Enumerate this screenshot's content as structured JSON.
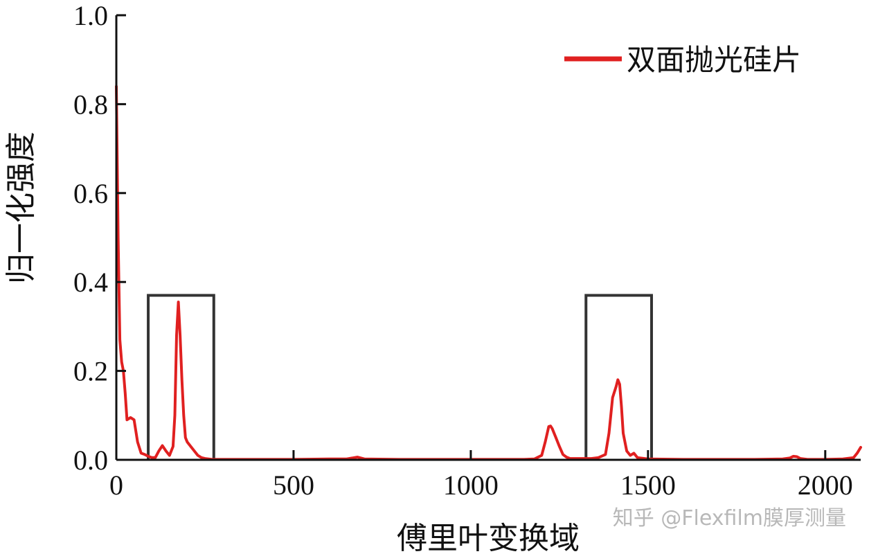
{
  "chart_data": {
    "type": "line",
    "xlabel": "傅里叶变换域",
    "ylabel": "归一化强度",
    "xlim": [
      0,
      2100
    ],
    "ylim": [
      0,
      1.0
    ],
    "xticks": [
      0,
      500,
      1000,
      1500,
      2000
    ],
    "xtick_labels": [
      "0",
      "500",
      "1000",
      "1500",
      "2000"
    ],
    "yticks": [
      0,
      0.2,
      0.4,
      0.6,
      0.8,
      1.0
    ],
    "ytick_labels": [
      "0.0",
      "0.2",
      "0.4",
      "0.6",
      "0.8",
      "1.0"
    ],
    "grid": false,
    "legend_position": "top-right",
    "series": [
      {
        "name": "双面抛光硅片",
        "color": "#e02020",
        "x": [
          0,
          5,
          10,
          15,
          20,
          25,
          30,
          40,
          50,
          60,
          70,
          80,
          90,
          100,
          110,
          120,
          130,
          140,
          150,
          160,
          165,
          170,
          175,
          180,
          185,
          190,
          195,
          200,
          210,
          220,
          230,
          240,
          250,
          260,
          270,
          300,
          400,
          500,
          600,
          650,
          680,
          700,
          800,
          900,
          1000,
          1100,
          1150,
          1180,
          1200,
          1210,
          1220,
          1225,
          1230,
          1240,
          1250,
          1260,
          1270,
          1280,
          1300,
          1340,
          1360,
          1380,
          1390,
          1400,
          1410,
          1415,
          1420,
          1425,
          1430,
          1440,
          1450,
          1460,
          1470,
          1500,
          1600,
          1700,
          1800,
          1880,
          1900,
          1910,
          1920,
          1930,
          1950,
          2000,
          2050,
          2080,
          2090,
          2100
        ],
        "y": [
          0.84,
          0.5,
          0.27,
          0.22,
          0.2,
          0.15,
          0.09,
          0.095,
          0.09,
          0.04,
          0.015,
          0.012,
          0.008,
          0.005,
          0.005,
          0.02,
          0.032,
          0.02,
          0.01,
          0.03,
          0.1,
          0.28,
          0.355,
          0.28,
          0.18,
          0.1,
          0.05,
          0.04,
          0.03,
          0.02,
          0.01,
          0.005,
          0.003,
          0.002,
          0.001,
          0.001,
          0.001,
          0.001,
          0.002,
          0.002,
          0.006,
          0.002,
          0.001,
          0.001,
          0.001,
          0.001,
          0.001,
          0.002,
          0.01,
          0.04,
          0.075,
          0.076,
          0.07,
          0.05,
          0.03,
          0.012,
          0.006,
          0.003,
          0.003,
          0.003,
          0.005,
          0.012,
          0.06,
          0.14,
          0.165,
          0.18,
          0.17,
          0.12,
          0.06,
          0.02,
          0.01,
          0.015,
          0.005,
          0.002,
          0.001,
          0.001,
          0.001,
          0.002,
          0.004,
          0.008,
          0.007,
          0.003,
          0.001,
          0.001,
          0.002,
          0.005,
          0.015,
          0.028
        ]
      }
    ],
    "annotation_boxes": [
      {
        "x0": 90,
        "x1": 275,
        "y0": 0,
        "y1": 0.37,
        "color": "#333333"
      },
      {
        "x0": 1325,
        "x1": 1510,
        "y0": 0,
        "y1": 0.37,
        "color": "#333333"
      }
    ]
  },
  "watermark": "知乎 @Flexfilm膜厚测量"
}
